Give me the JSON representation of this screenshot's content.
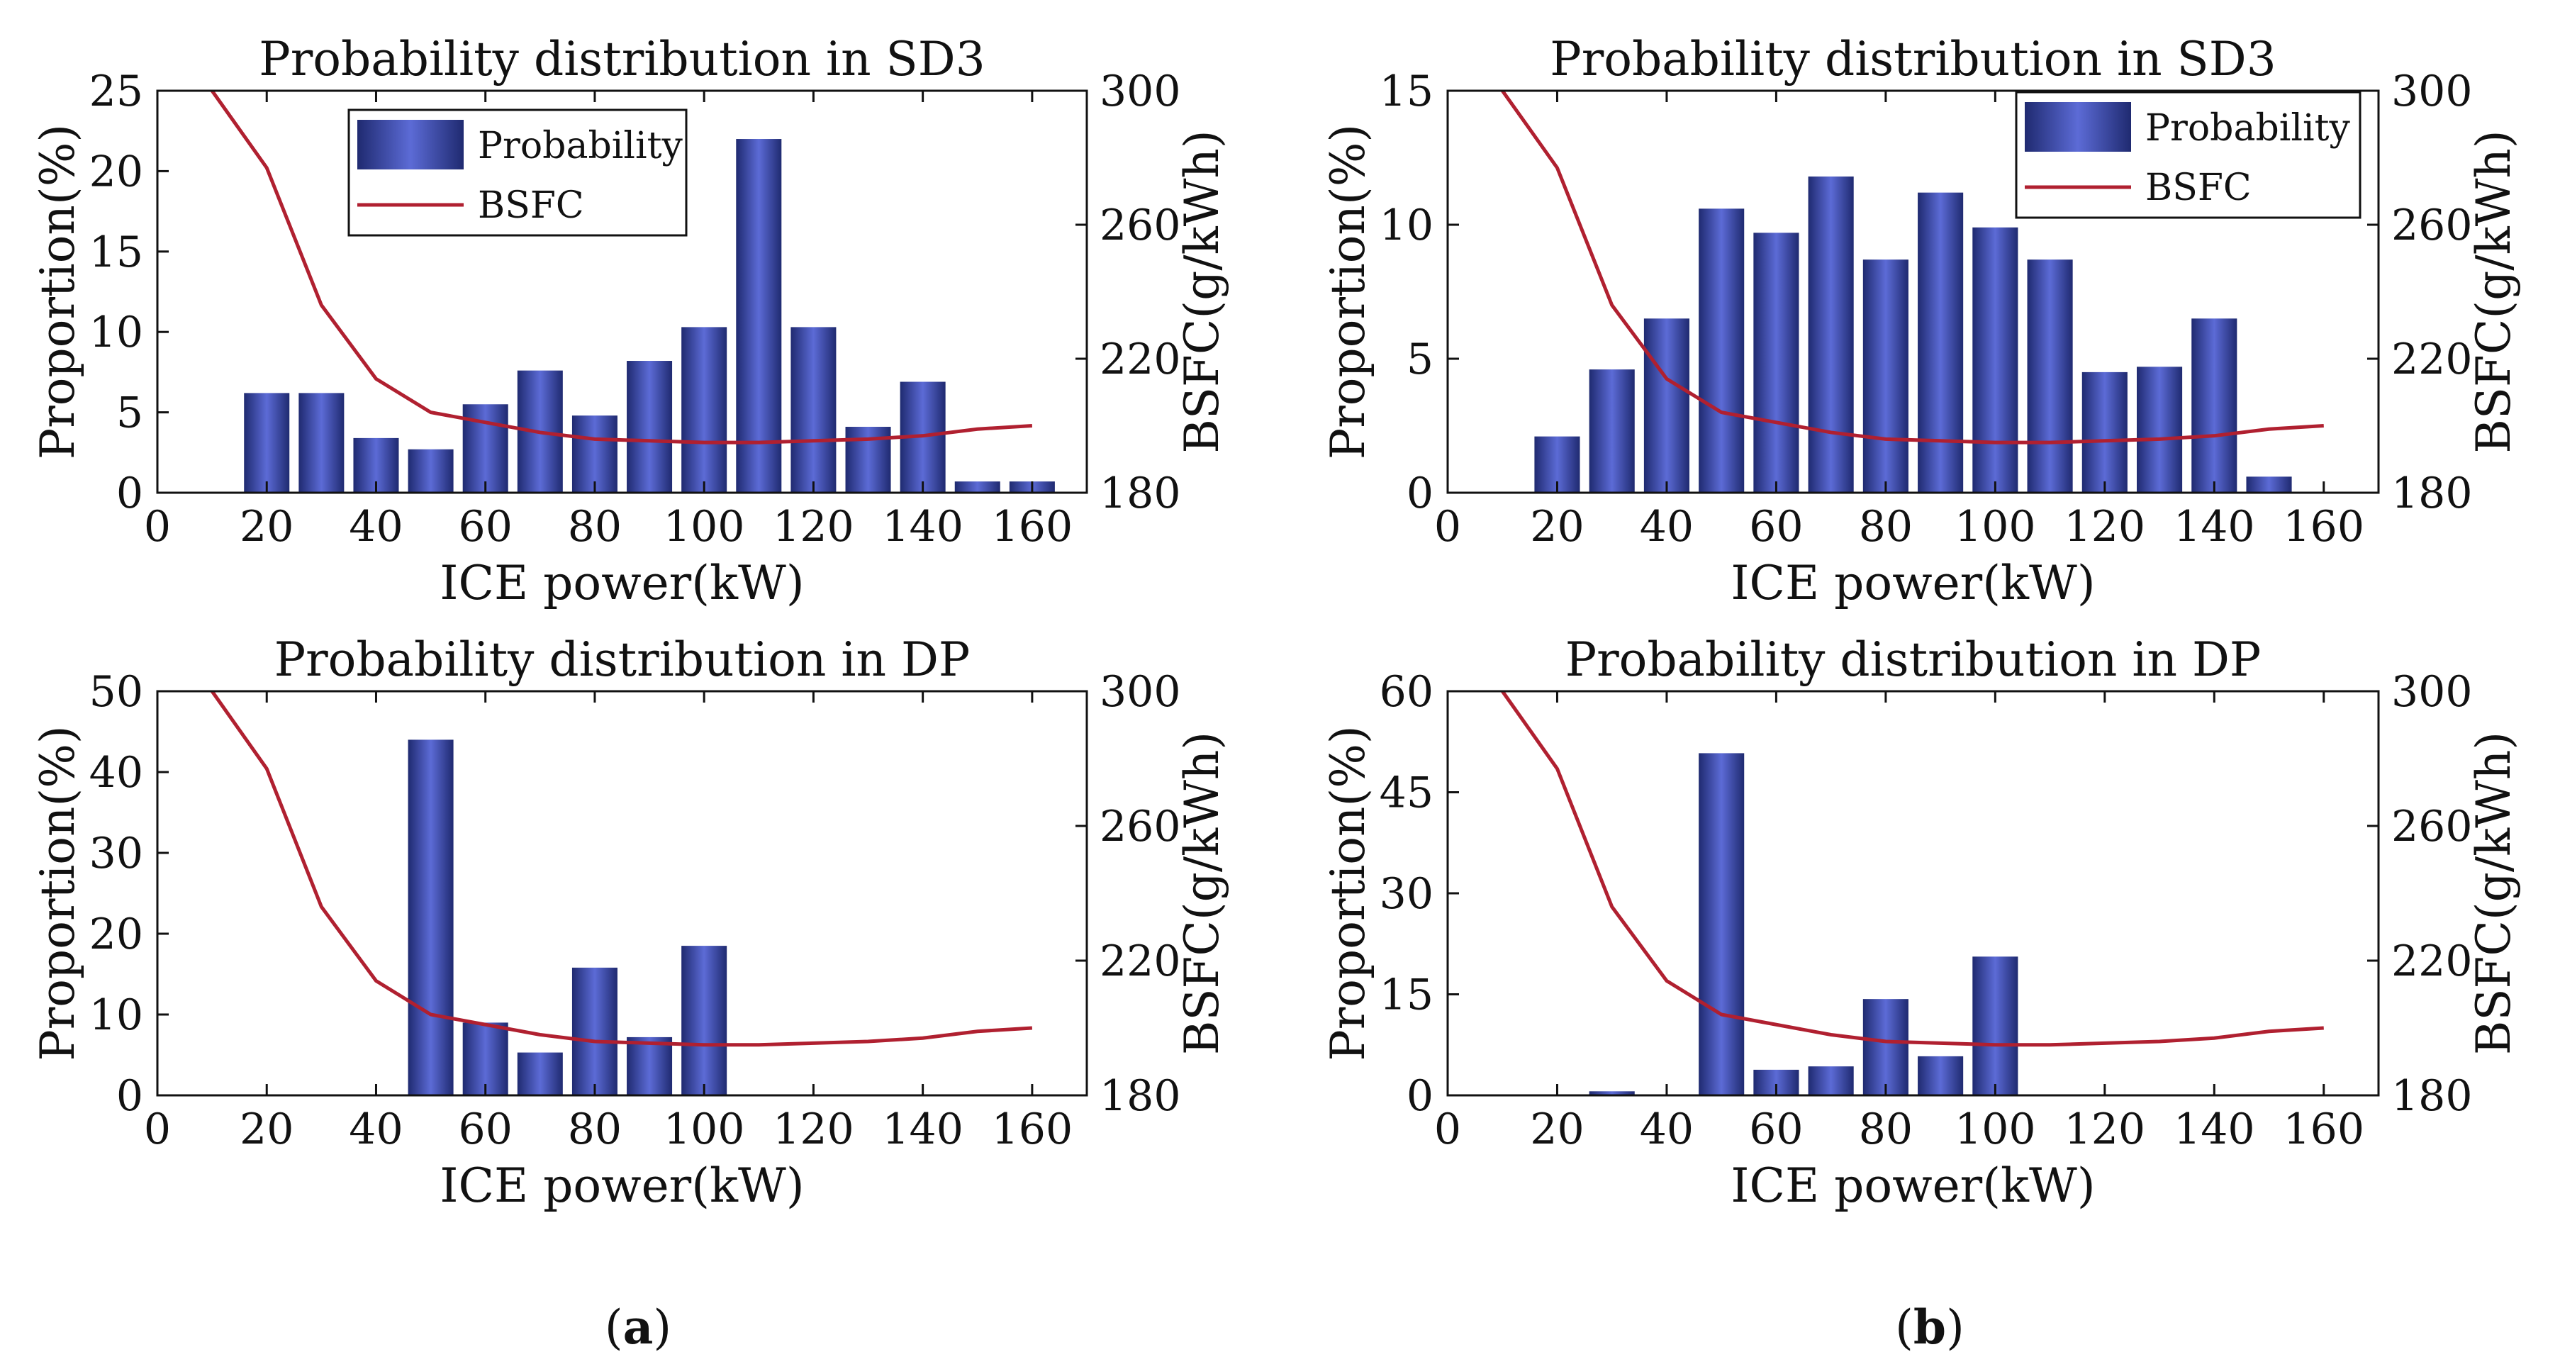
{
  "chart_data": [
    {
      "type": "bar",
      "panel": "a-top",
      "title": "Probability distribution in SD3",
      "xlabel": "ICE power(kW)",
      "ylabel": "Proportion(%)",
      "y2label": "BSFC(g/kWh)",
      "xlim": [
        0,
        170
      ],
      "ylim": [
        0,
        25
      ],
      "y2lim": [
        180,
        300
      ],
      "xticks": [
        "0",
        "20",
        "40",
        "60",
        "80",
        "100",
        "120",
        "140",
        "160"
      ],
      "yticks": [
        "0",
        "5",
        "10",
        "15",
        "20",
        "25"
      ],
      "y2ticks": [
        "180",
        "220",
        "260",
        "300"
      ],
      "bar_x": [
        20,
        30,
        40,
        50,
        60,
        70,
        80,
        90,
        100,
        110,
        120,
        130,
        140,
        150,
        160
      ],
      "bar_values": [
        6.2,
        6.2,
        3.4,
        2.7,
        5.5,
        7.6,
        4.8,
        8.2,
        10.3,
        22.0,
        10.3,
        4.1,
        6.9,
        0.7,
        0.7
      ],
      "bsfc_x": [
        10,
        20,
        30,
        40,
        50,
        60,
        70,
        80,
        90,
        100,
        110,
        120,
        130,
        140,
        150,
        160
      ],
      "bsfc_values": [
        300,
        277,
        236,
        214,
        204,
        201,
        198,
        196,
        195.5,
        195,
        195,
        195.5,
        196,
        197,
        199,
        200
      ],
      "legend": [
        "Probability",
        "BSFC"
      ],
      "legend_position": "top-center"
    },
    {
      "type": "bar",
      "panel": "a-bottom",
      "title": "Probability distribution in DP",
      "xlabel": "ICE power(kW)",
      "ylabel": "Proportion(%)",
      "y2label": "BSFC(g/kWh)",
      "xlim": [
        0,
        170
      ],
      "ylim": [
        0,
        50
      ],
      "y2lim": [
        180,
        300
      ],
      "xticks": [
        "0",
        "20",
        "40",
        "60",
        "80",
        "100",
        "120",
        "140",
        "160"
      ],
      "yticks": [
        "0",
        "10",
        "20",
        "30",
        "40",
        "50"
      ],
      "y2ticks": [
        "180",
        "220",
        "260",
        "300"
      ],
      "bar_x": [
        50,
        60,
        70,
        80,
        90,
        100
      ],
      "bar_values": [
        44.0,
        9.0,
        5.3,
        15.8,
        7.2,
        18.5
      ],
      "bsfc_x": [
        10,
        20,
        30,
        40,
        50,
        60,
        70,
        80,
        90,
        100,
        110,
        120,
        130,
        140,
        150,
        160
      ],
      "bsfc_values": [
        300,
        277,
        236,
        214,
        204,
        201,
        198,
        196,
        195.5,
        195,
        195,
        195.5,
        196,
        197,
        199,
        200
      ]
    },
    {
      "type": "bar",
      "panel": "b-top",
      "title": "Probability distribution in SD3",
      "xlabel": "ICE power(kW)",
      "ylabel": "Proportion(%)",
      "y2label": "BSFC(g/kWh)",
      "xlim": [
        0,
        170
      ],
      "ylim": [
        0,
        15
      ],
      "y2lim": [
        180,
        300
      ],
      "xticks": [
        "0",
        "20",
        "40",
        "60",
        "80",
        "100",
        "120",
        "140",
        "160"
      ],
      "yticks": [
        "0",
        "5",
        "10",
        "15"
      ],
      "y2ticks": [
        "180",
        "220",
        "260",
        "300"
      ],
      "bar_x": [
        20,
        30,
        40,
        50,
        60,
        70,
        80,
        90,
        100,
        110,
        120,
        130,
        140,
        150
      ],
      "bar_values": [
        2.1,
        4.6,
        6.5,
        10.6,
        9.7,
        11.8,
        8.7,
        11.2,
        9.9,
        8.7,
        4.5,
        4.7,
        6.5,
        0.6
      ],
      "bsfc_x": [
        10,
        20,
        30,
        40,
        50,
        60,
        70,
        80,
        90,
        100,
        110,
        120,
        130,
        140,
        150,
        160
      ],
      "bsfc_values": [
        300,
        277,
        236,
        214,
        204,
        201,
        198,
        196,
        195.5,
        195,
        195,
        195.5,
        196,
        197,
        199,
        200
      ],
      "legend": [
        "Probability",
        "BSFC"
      ],
      "legend_position": "top-right"
    },
    {
      "type": "bar",
      "panel": "b-bottom",
      "title": "Probability distribution in DP",
      "xlabel": "ICE power(kW)",
      "ylabel": "Proportion(%)",
      "y2label": "BSFC(g/kWh)",
      "xlim": [
        0,
        170
      ],
      "ylim": [
        0,
        60
      ],
      "y2lim": [
        180,
        300
      ],
      "xticks": [
        "0",
        "20",
        "40",
        "60",
        "80",
        "100",
        "120",
        "140",
        "160"
      ],
      "yticks": [
        "0",
        "15",
        "30",
        "45",
        "60"
      ],
      "y2ticks": [
        "180",
        "220",
        "260",
        "300"
      ],
      "bar_x": [
        30,
        50,
        60,
        70,
        80,
        90,
        100
      ],
      "bar_values": [
        0.6,
        50.8,
        3.8,
        4.3,
        14.3,
        5.8,
        20.6
      ],
      "bsfc_x": [
        10,
        20,
        30,
        40,
        50,
        60,
        70,
        80,
        90,
        100,
        110,
        120,
        130,
        140,
        150,
        160
      ],
      "bsfc_values": [
        300,
        277,
        236,
        214,
        204,
        201,
        198,
        196,
        195.5,
        195,
        195,
        195.5,
        196,
        197,
        199,
        200
      ]
    }
  ],
  "panel_labels": {
    "a": "a",
    "b": "b"
  },
  "colors": {
    "bar_dark": "#1f2a70",
    "bar_light": "#5c6bd6",
    "bsfc_line": "#b02030",
    "axis": "#111111"
  }
}
